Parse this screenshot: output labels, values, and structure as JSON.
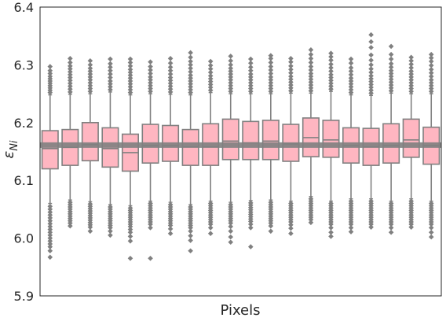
{
  "chart_data": {
    "type": "box",
    "xlabel": "Pixels",
    "ylabel": "ε",
    "ylabel_subscript": "Ni",
    "ylim": [
      5.9,
      6.4
    ],
    "yticks": [
      "5.9",
      "6.0",
      "6.1",
      "6.2",
      "6.3",
      "6.4"
    ],
    "box_color": "#ffb6c1",
    "line_color": "#808080",
    "reference_line": 6.161,
    "boxes": [
      {
        "q1": 6.12,
        "median": 6.155,
        "q3": 6.186,
        "whisker_low": 6.06,
        "whisker_high": 6.248,
        "outliers_low": [
          6.055,
          6.05,
          6.045,
          6.04,
          6.035,
          6.03,
          6.025,
          6.02,
          6.015,
          6.01,
          6.005,
          6.0,
          5.995,
          5.99,
          5.985,
          5.978,
          5.967
        ],
        "outliers_high": [
          6.252,
          6.256,
          6.26,
          6.264,
          6.268,
          6.272,
          6.276,
          6.28,
          6.285,
          6.29,
          6.297
        ]
      },
      {
        "q1": 6.126,
        "median": 6.157,
        "q3": 6.188,
        "whisker_low": 6.066,
        "whisker_high": 6.249,
        "outliers_low": [
          6.062,
          6.058,
          6.054,
          6.05,
          6.046,
          6.042,
          6.038,
          6.034,
          6.03,
          6.026,
          6.021
        ],
        "outliers_high": [
          6.253,
          6.258,
          6.263,
          6.268,
          6.273,
          6.278,
          6.283,
          6.288,
          6.293,
          6.298,
          6.304,
          6.311
        ]
      },
      {
        "q1": 6.134,
        "median": 6.162,
        "q3": 6.2,
        "whisker_low": 6.063,
        "whisker_high": 6.25,
        "outliers_low": [
          6.059,
          6.055,
          6.051,
          6.047,
          6.043,
          6.039,
          6.035,
          6.031,
          6.027,
          6.023,
          6.019,
          6.012
        ],
        "outliers_high": [
          6.254,
          6.259,
          6.264,
          6.269,
          6.274,
          6.279,
          6.284,
          6.289,
          6.294,
          6.3,
          6.307
        ]
      },
      {
        "q1": 6.123,
        "median": 6.155,
        "q3": 6.191,
        "whisker_low": 6.058,
        "whisker_high": 6.253,
        "outliers_low": [
          6.054,
          6.05,
          6.046,
          6.042,
          6.038,
          6.034,
          6.03,
          6.026,
          6.022,
          6.018,
          6.012,
          6.005
        ],
        "outliers_high": [
          6.257,
          6.262,
          6.267,
          6.272,
          6.278,
          6.284,
          6.29,
          6.296,
          6.302,
          6.31
        ]
      },
      {
        "q1": 6.116,
        "median": 6.148,
        "q3": 6.18,
        "whisker_low": 6.056,
        "whisker_high": 6.248,
        "outliers_low": [
          6.052,
          6.048,
          6.044,
          6.04,
          6.036,
          6.032,
          6.028,
          6.024,
          6.02,
          6.015,
          6.01,
          6.003,
          5.995,
          5.965
        ],
        "outliers_high": [
          6.252,
          6.257,
          6.262,
          6.267,
          6.272,
          6.277,
          6.282,
          6.287,
          6.292,
          6.298,
          6.304,
          6.31
        ]
      },
      {
        "q1": 6.13,
        "median": 6.16,
        "q3": 6.197,
        "whisker_low": 6.064,
        "whisker_high": 6.25,
        "outliers_low": [
          6.06,
          6.056,
          6.052,
          6.048,
          6.044,
          6.04,
          6.036,
          6.032,
          6.028,
          6.024,
          6.018,
          5.965
        ],
        "outliers_high": [
          6.254,
          6.259,
          6.264,
          6.269,
          6.274,
          6.279,
          6.285,
          6.291,
          6.297,
          6.305
        ]
      },
      {
        "q1": 6.133,
        "median": 6.16,
        "q3": 6.195,
        "whisker_low": 6.062,
        "whisker_high": 6.249,
        "outliers_low": [
          6.058,
          6.054,
          6.05,
          6.046,
          6.042,
          6.038,
          6.034,
          6.03,
          6.026,
          6.022,
          6.016,
          6.008
        ],
        "outliers_high": [
          6.253,
          6.258,
          6.263,
          6.268,
          6.273,
          6.278,
          6.284,
          6.29,
          6.296,
          6.303,
          6.311
        ]
      },
      {
        "q1": 6.126,
        "median": 6.158,
        "q3": 6.188,
        "whisker_low": 6.058,
        "whisker_high": 6.248,
        "outliers_low": [
          6.054,
          6.05,
          6.046,
          6.042,
          6.038,
          6.034,
          6.03,
          6.026,
          6.022,
          6.018,
          6.012,
          6.004,
          5.996,
          5.978
        ],
        "outliers_high": [
          6.252,
          6.257,
          6.262,
          6.267,
          6.272,
          6.277,
          6.282,
          6.288,
          6.294,
          6.3,
          6.306,
          6.313,
          6.321
        ]
      },
      {
        "q1": 6.126,
        "median": 6.158,
        "q3": 6.198,
        "whisker_low": 6.064,
        "whisker_high": 6.252,
        "outliers_low": [
          6.06,
          6.056,
          6.052,
          6.048,
          6.044,
          6.04,
          6.036,
          6.032,
          6.028,
          6.024,
          6.018,
          6.008
        ],
        "outliers_high": [
          6.256,
          6.261,
          6.266,
          6.271,
          6.276,
          6.281,
          6.287,
          6.293,
          6.299,
          6.306
        ]
      },
      {
        "q1": 6.136,
        "median": 6.168,
        "q3": 6.206,
        "whisker_low": 6.062,
        "whisker_high": 6.25,
        "outliers_low": [
          6.058,
          6.054,
          6.05,
          6.046,
          6.042,
          6.038,
          6.034,
          6.03,
          6.026,
          6.02,
          6.012,
          6.002,
          5.993
        ],
        "outliers_high": [
          6.254,
          6.259,
          6.264,
          6.269,
          6.274,
          6.279,
          6.284,
          6.289,
          6.294,
          6.3,
          6.307,
          6.315
        ]
      },
      {
        "q1": 6.136,
        "median": 6.165,
        "q3": 6.202,
        "whisker_low": 6.065,
        "whisker_high": 6.25,
        "outliers_low": [
          6.061,
          6.057,
          6.053,
          6.049,
          6.045,
          6.041,
          6.037,
          6.033,
          6.029,
          6.024,
          6.018,
          5.985
        ],
        "outliers_high": [
          6.254,
          6.259,
          6.264,
          6.269,
          6.274,
          6.279,
          6.284,
          6.29,
          6.296,
          6.303,
          6.31
        ]
      },
      {
        "q1": 6.136,
        "median": 6.168,
        "q3": 6.204,
        "whisker_low": 6.066,
        "whisker_high": 6.25,
        "outliers_low": [
          6.062,
          6.058,
          6.054,
          6.05,
          6.046,
          6.042,
          6.038,
          6.034,
          6.03,
          6.026,
          6.021,
          6.012
        ],
        "outliers_high": [
          6.254,
          6.259,
          6.264,
          6.269,
          6.274,
          6.279,
          6.285,
          6.291,
          6.297,
          6.304,
          6.311,
          6.316
        ]
      },
      {
        "q1": 6.133,
        "median": 6.163,
        "q3": 6.197,
        "whisker_low": 6.064,
        "whisker_high": 6.251,
        "outliers_low": [
          6.06,
          6.056,
          6.052,
          6.048,
          6.044,
          6.04,
          6.036,
          6.032,
          6.028,
          6.023,
          6.017,
          6.008
        ],
        "outliers_high": [
          6.255,
          6.26,
          6.265,
          6.27,
          6.275,
          6.28,
          6.286,
          6.292,
          6.298,
          6.305,
          6.311
        ]
      },
      {
        "q1": 6.141,
        "median": 6.174,
        "q3": 6.208,
        "whisker_low": 6.072,
        "whisker_high": 6.251,
        "outliers_low": [
          6.068,
          6.064,
          6.06,
          6.056,
          6.052,
          6.048,
          6.044,
          6.04,
          6.036,
          6.032,
          6.027
        ],
        "outliers_high": [
          6.255,
          6.26,
          6.265,
          6.27,
          6.275,
          6.28,
          6.285,
          6.291,
          6.297,
          6.304,
          6.311,
          6.318,
          6.326
        ]
      },
      {
        "q1": 6.14,
        "median": 6.17,
        "q3": 6.204,
        "whisker_low": 6.064,
        "whisker_high": 6.254,
        "outliers_low": [
          6.06,
          6.056,
          6.052,
          6.048,
          6.044,
          6.04,
          6.036,
          6.032,
          6.028,
          6.024,
          6.018,
          6.01,
          6.003
        ],
        "outliers_high": [
          6.258,
          6.263,
          6.268,
          6.273,
          6.278,
          6.283,
          6.289,
          6.295,
          6.301,
          6.308,
          6.314,
          6.32
        ]
      },
      {
        "q1": 6.13,
        "median": 6.16,
        "q3": 6.191,
        "whisker_low": 6.068,
        "whisker_high": 6.248,
        "outliers_low": [
          6.064,
          6.06,
          6.056,
          6.052,
          6.048,
          6.044,
          6.04,
          6.036,
          6.032,
          6.028,
          6.024,
          6.018,
          6.011
        ],
        "outliers_high": [
          6.252,
          6.257,
          6.262,
          6.267,
          6.272,
          6.277,
          6.283,
          6.289,
          6.295,
          6.303,
          6.31
        ]
      },
      {
        "q1": 6.126,
        "median": 6.158,
        "q3": 6.19,
        "whisker_low": 6.068,
        "whisker_high": 6.247,
        "outliers_low": [
          6.064,
          6.06,
          6.056,
          6.052,
          6.048,
          6.044,
          6.04,
          6.036,
          6.032,
          6.028,
          6.024,
          6.019
        ],
        "outliers_high": [
          6.251,
          6.256,
          6.261,
          6.266,
          6.271,
          6.276,
          6.281,
          6.287,
          6.293,
          6.3,
          6.308,
          6.317,
          6.33,
          6.34,
          6.352
        ]
      },
      {
        "q1": 6.13,
        "median": 6.16,
        "q3": 6.198,
        "whisker_low": 6.064,
        "whisker_high": 6.251,
        "outliers_low": [
          6.06,
          6.056,
          6.052,
          6.048,
          6.044,
          6.04,
          6.036,
          6.032,
          6.028,
          6.024,
          6.018,
          6.01
        ],
        "outliers_high": [
          6.255,
          6.26,
          6.265,
          6.27,
          6.275,
          6.28,
          6.285,
          6.29,
          6.296,
          6.302,
          6.31,
          6.318,
          6.332
        ]
      },
      {
        "q1": 6.14,
        "median": 6.17,
        "q3": 6.206,
        "whisker_low": 6.068,
        "whisker_high": 6.25,
        "outliers_low": [
          6.064,
          6.06,
          6.056,
          6.052,
          6.048,
          6.044,
          6.04,
          6.036,
          6.032,
          6.028,
          6.024,
          6.019
        ],
        "outliers_high": [
          6.254,
          6.259,
          6.264,
          6.269,
          6.274,
          6.279,
          6.284,
          6.289,
          6.295,
          6.301,
          6.307,
          6.313
        ]
      },
      {
        "q1": 6.128,
        "median": 6.16,
        "q3": 6.192,
        "whisker_low": 6.064,
        "whisker_high": 6.25,
        "outliers_low": [
          6.06,
          6.056,
          6.052,
          6.048,
          6.044,
          6.04,
          6.036,
          6.032,
          6.028,
          6.024,
          6.018,
          6.01,
          6.002
        ],
        "outliers_high": [
          6.254,
          6.259,
          6.264,
          6.269,
          6.274,
          6.28,
          6.286,
          6.292,
          6.299,
          6.306,
          6.312,
          6.318
        ]
      }
    ]
  }
}
